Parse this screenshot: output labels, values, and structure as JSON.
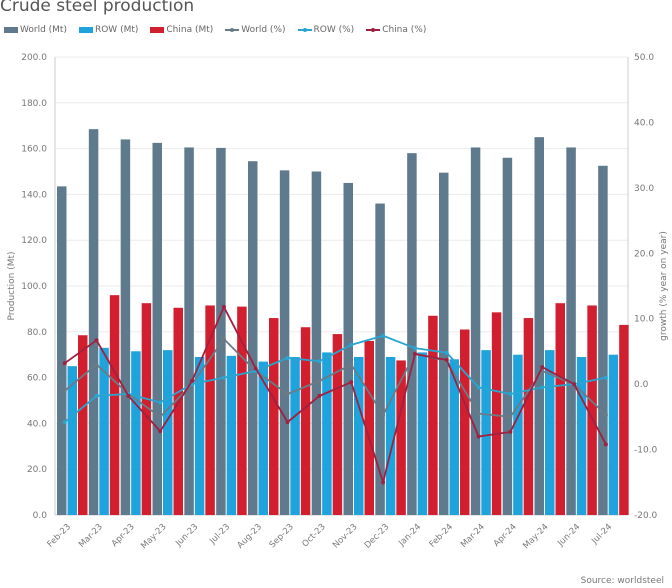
{
  "chart_data": {
    "type": "bar",
    "title": "Crude steel production",
    "ylabel": "Production (Mt)",
    "y2label": "growth (% year on year)",
    "ylim": [
      0,
      200
    ],
    "y2lim": [
      -20,
      50
    ],
    "yticks": [
      "0.0",
      "20.0",
      "40.0",
      "60.0",
      "80.0",
      "100.0",
      "120.0",
      "140.0",
      "160.0",
      "180.0",
      "200.0"
    ],
    "y2ticks": [
      "-20.0",
      "-10.0",
      "0.0",
      "10.0",
      "20.0",
      "30.0",
      "40.0",
      "50.0"
    ],
    "grid": true,
    "legend_position": "top-left",
    "categories": [
      "Feb-23",
      "Mar-23",
      "Apr-23",
      "May-23",
      "Jun-23",
      "Jul-23",
      "Aug-23",
      "Sep-23",
      "Oct-23",
      "Nov-23",
      "Dec-23",
      "Jan-24",
      "Feb-24",
      "Mar-24",
      "Apr-24",
      "May-24",
      "Jun-24",
      "Jul-24"
    ],
    "bar_series": [
      {
        "name": "World (Mt)",
        "color": "#5e7a8c",
        "values": [
          143.5,
          168.5,
          164,
          162.5,
          160.5,
          160.3,
          154.5,
          150.5,
          150,
          145,
          136,
          158,
          149.5,
          160.5,
          156,
          165,
          160.5,
          152.5
        ]
      },
      {
        "name": "ROW (Mt)",
        "color": "#1fa3dc",
        "values": [
          65,
          73,
          71.5,
          72,
          69,
          69.5,
          67,
          69,
          71,
          69,
          69,
          71,
          68,
          72,
          70,
          72,
          69,
          70
        ]
      },
      {
        "name": "China (Mt)",
        "color": "#d21f2f",
        "values": [
          78.5,
          96,
          92.5,
          90.5,
          91.5,
          91,
          86,
          82,
          79,
          76,
          67.5,
          87,
          81,
          88.5,
          86,
          92.5,
          91.5,
          83
        ]
      }
    ],
    "line_series": [
      {
        "name": "World (%)",
        "color": "#6b7b86",
        "values": [
          -1,
          3,
          -1.5,
          -5,
          0,
          6.9,
          2,
          -1.5,
          0.5,
          3,
          -4.7,
          4.7,
          3.5,
          -4.5,
          -5,
          2,
          0,
          -4.7
        ]
      },
      {
        "name": "ROW (%)",
        "color": "#2aa5d0",
        "values": [
          -5.8,
          -1.8,
          -1.5,
          -2.8,
          0,
          1,
          2,
          4,
          3.5,
          6,
          7.4,
          5.5,
          4.8,
          -0.5,
          -1.5,
          -0.5,
          0,
          1
        ]
      },
      {
        "name": "China (%)",
        "color": "#a02040",
        "values": [
          3.2,
          6.7,
          -1.8,
          -7.2,
          0.5,
          11.8,
          2.4,
          -5.8,
          -1.8,
          0.3,
          -15,
          4.6,
          3.7,
          -8,
          -7.3,
          2.6,
          0,
          -9.2
        ]
      }
    ]
  },
  "source": "Source: worldsteel"
}
